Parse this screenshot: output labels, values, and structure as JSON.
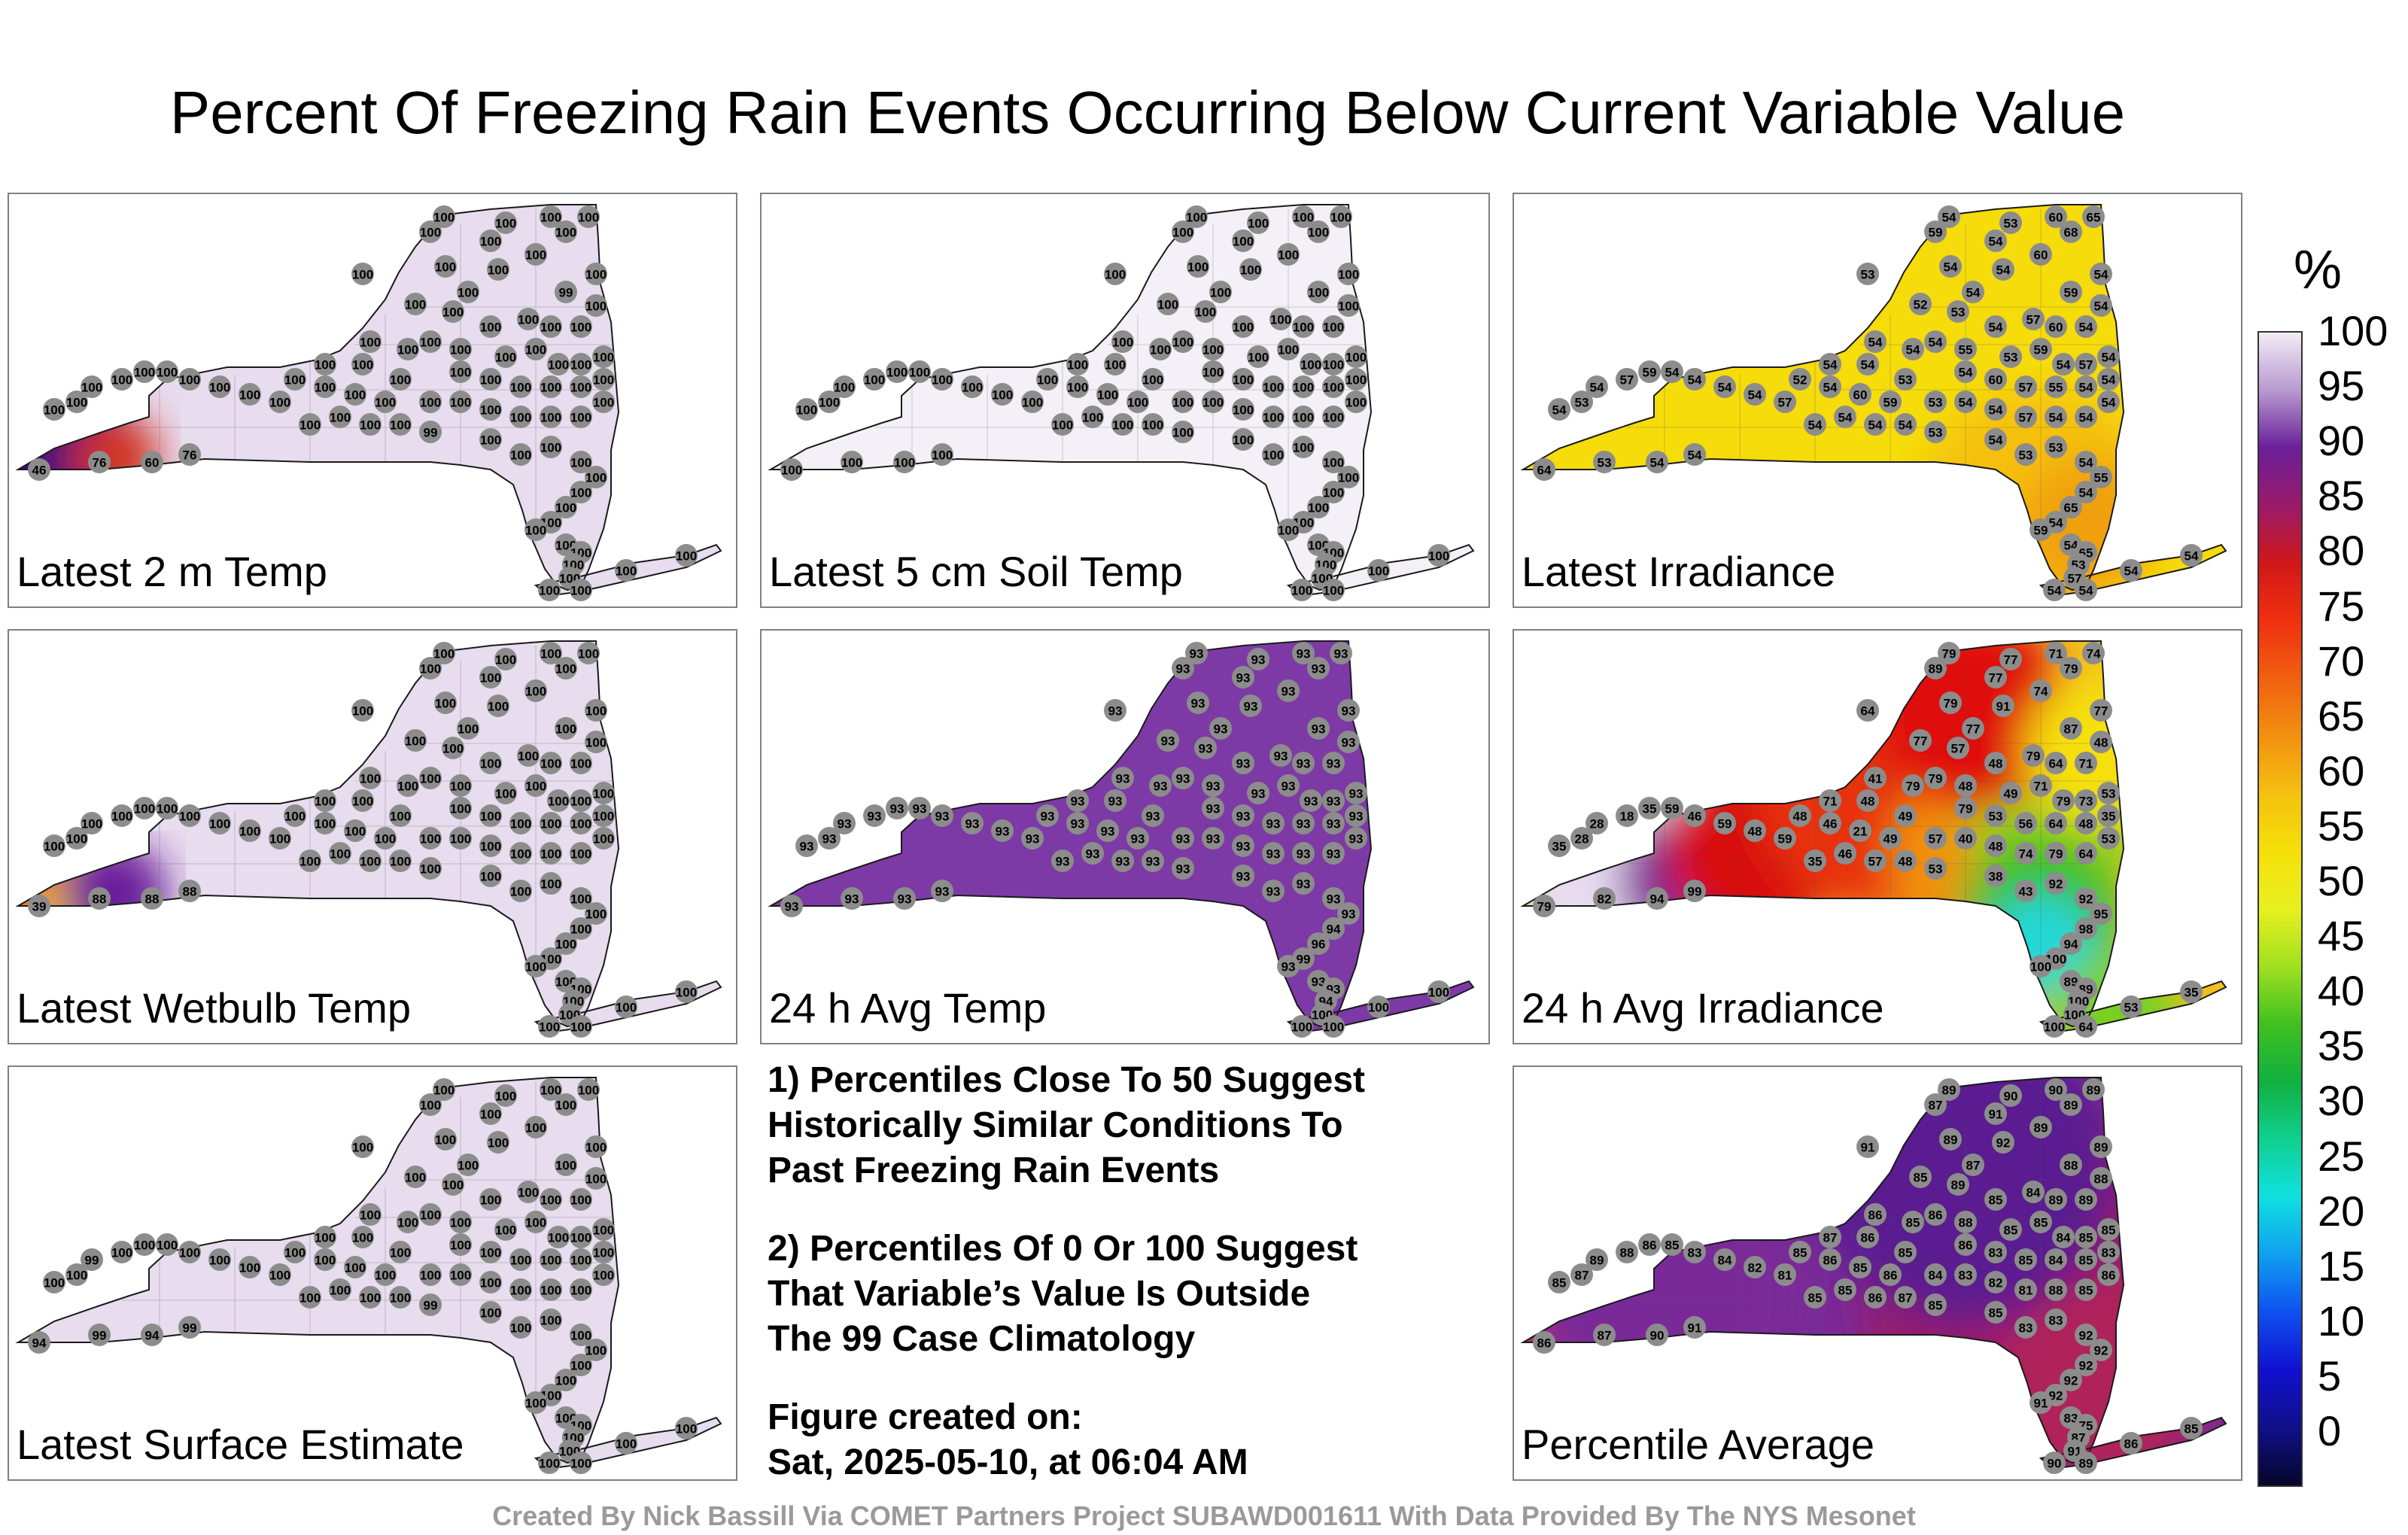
{
  "title": "Percent Of Freezing Rain Events Occurring Below Current Variable Value",
  "colors": {
    "p100": "#ece3f2",
    "p93": "#7d3aa6",
    "p89": "#6a1f9a",
    "p85": "#9a1a6a",
    "p76": "#d02010",
    "p54": "#f2d90a",
    "p40": "#2fc02f",
    "p20": "#20d8d8",
    "outline": "#1a1a1a",
    "station": "#8c8c8c"
  },
  "panels": [
    {
      "label": "Latest 2 m Temp",
      "fill": "#e8dcef",
      "values": [
        "100",
        "100",
        "100",
        "100",
        "100",
        "100",
        "100",
        "100",
        "100",
        "100",
        "100",
        "100",
        "99",
        "100",
        "100",
        "100",
        "100",
        "100",
        "100",
        "100",
        "100",
        "100",
        "100",
        "100",
        "100",
        "100",
        "100",
        "100",
        "100",
        "100",
        "100",
        "100",
        "100",
        "100",
        "100",
        "100",
        "100",
        "100",
        "100",
        "100",
        "100",
        "100",
        "100",
        "100",
        "100",
        "100",
        "100",
        "100",
        "100",
        "100",
        "100",
        "100",
        "100",
        "100",
        "100",
        "100",
        "100",
        "100",
        "100",
        "100",
        "100",
        "100",
        "100",
        "100",
        "99",
        "100",
        "100",
        "100",
        "100",
        "100",
        "100",
        "100",
        "100",
        "100",
        "76",
        "60",
        "76",
        "46",
        "100",
        "100",
        "100",
        "100",
        "100",
        "100",
        "100",
        "100"
      ]
    },
    {
      "label": "Latest 5 cm Soil Temp",
      "fill": "#f4f0f7",
      "values": [
        "100",
        "100",
        "100",
        "100",
        "100",
        "100",
        "100",
        "100",
        "100",
        "100",
        "100",
        "100",
        "100",
        "100",
        "100",
        "100",
        "100",
        "100",
        "100",
        "100",
        "100",
        "100",
        "100",
        "100",
        "100",
        "100",
        "100",
        "100",
        "100",
        "100",
        "100",
        "100",
        "100",
        "100",
        "100",
        "100",
        "100",
        "100",
        "100",
        "100",
        "100",
        "100",
        "100",
        "100",
        "100",
        "100",
        "100",
        "100",
        "100",
        "100",
        "100",
        "100",
        "100",
        "100",
        "100",
        "100",
        "100",
        "100",
        "100",
        "100",
        "100",
        "100",
        "100",
        "100",
        "100",
        "100",
        "100",
        "100",
        "100",
        "100",
        "100",
        "100",
        "100",
        "100",
        "100",
        "100",
        "100",
        "100",
        "100",
        "100",
        "100",
        "100",
        "100",
        "100",
        "100",
        "100"
      ]
    },
    {
      "label": "Latest Irradiance",
      "fill": "#f5dc0a",
      "values": [
        "54",
        "53",
        "60",
        "68",
        "65",
        "59",
        "54",
        "53",
        "54",
        "54",
        "60",
        "54",
        "59",
        "54",
        "52",
        "53",
        "54",
        "57",
        "60",
        "54",
        "54",
        "54",
        "54",
        "54",
        "55",
        "53",
        "59",
        "54",
        "57",
        "54",
        "54",
        "54",
        "53",
        "54",
        "60",
        "57",
        "55",
        "54",
        "54",
        "53",
        "54",
        "54",
        "57",
        "54",
        "54",
        "54",
        "59",
        "60",
        "54",
        "52",
        "57",
        "54",
        "54",
        "54",
        "54",
        "59",
        "57",
        "54",
        "53",
        "54",
        "54",
        "54",
        "54",
        "54",
        "53",
        "54",
        "53",
        "53",
        "54",
        "55",
        "54",
        "65",
        "54",
        "59",
        "54",
        "54",
        "53",
        "64",
        "54",
        "65",
        "53",
        "57",
        "54",
        "54",
        "54",
        "54"
      ]
    },
    {
      "label": "Latest Wetbulb Temp",
      "fill": "#e8dcef",
      "values": [
        "100",
        "100",
        "100",
        "100",
        "100",
        "100",
        "100",
        "100",
        "100",
        "100",
        "100",
        "100",
        "100",
        "100",
        "100",
        "100",
        "100",
        "100",
        "100",
        "100",
        "100",
        "100",
        "100",
        "100",
        "100",
        "100",
        "100",
        "100",
        "100",
        "100",
        "100",
        "100",
        "100",
        "100",
        "100",
        "100",
        "100",
        "100",
        "100",
        "100",
        "100",
        "100",
        "100",
        "100",
        "100",
        "100",
        "100",
        "100",
        "100",
        "100",
        "100",
        "100",
        "100",
        "100",
        "100",
        "100",
        "100",
        "100",
        "100",
        "100",
        "100",
        "100",
        "100",
        "100",
        "100",
        "100",
        "100",
        "100",
        "100",
        "100",
        "100",
        "100",
        "100",
        "100",
        "88",
        "88",
        "88",
        "39",
        "100",
        "100",
        "100",
        "100",
        "100",
        "100",
        "100",
        "100"
      ]
    },
    {
      "label": "24 h Avg Temp",
      "fill": "#7d3aa6",
      "values": [
        "93",
        "93",
        "93",
        "93",
        "93",
        "93",
        "93",
        "93",
        "93",
        "93",
        "93",
        "93",
        "93",
        "93",
        "93",
        "93",
        "93",
        "93",
        "93",
        "93",
        "93",
        "93",
        "93",
        "93",
        "93",
        "93",
        "93",
        "93",
        "93",
        "93",
        "93",
        "93",
        "93",
        "93",
        "93",
        "93",
        "93",
        "93",
        "93",
        "93",
        "93",
        "93",
        "93",
        "93",
        "93",
        "93",
        "93",
        "93",
        "93",
        "93",
        "93",
        "93",
        "93",
        "93",
        "93",
        "93",
        "93",
        "93",
        "93",
        "93",
        "93",
        "93",
        "93",
        "93",
        "93",
        "93",
        "93",
        "93",
        "93",
        "93",
        "94",
        "96",
        "99",
        "93",
        "93",
        "93",
        "93",
        "93",
        "93",
        "93",
        "94",
        "100",
        "100",
        "100",
        "100",
        "100"
      ]
    },
    {
      "label": "24 h Avg Irradiance",
      "fill": "#f2c020",
      "values": [
        "79",
        "77",
        "71",
        "79",
        "74",
        "89",
        "77",
        "64",
        "79",
        "91",
        "74",
        "77",
        "87",
        "77",
        "77",
        "57",
        "48",
        "79",
        "64",
        "71",
        "48",
        "41",
        "79",
        "79",
        "48",
        "49",
        "71",
        "79",
        "73",
        "53",
        "71",
        "48",
        "49",
        "79",
        "53",
        "56",
        "64",
        "48",
        "35",
        "57",
        "40",
        "48",
        "74",
        "79",
        "64",
        "53",
        "49",
        "21",
        "46",
        "48",
        "59",
        "48",
        "59",
        "46",
        "59",
        "35",
        "18",
        "28",
        "28",
        "35",
        "35",
        "46",
        "57",
        "48",
        "53",
        "38",
        "43",
        "92",
        "92",
        "95",
        "98",
        "94",
        "100",
        "100",
        "99",
        "94",
        "82",
        "79",
        "89",
        "89",
        "100",
        "100",
        "100",
        "64",
        "53",
        "35"
      ]
    },
    {
      "label": "Latest Surface Estimate",
      "fill": "#e8dcef",
      "values": [
        "100",
        "100",
        "100",
        "100",
        "100",
        "100",
        "100",
        "100",
        "100",
        "100",
        "100",
        "100",
        "100",
        "100",
        "100",
        "100",
        "100",
        "100",
        "100",
        "100",
        "100",
        "100",
        "100",
        "100",
        "100",
        "100",
        "100",
        "100",
        "100",
        "100",
        "100",
        "100",
        "100",
        "100",
        "100",
        "100",
        "100",
        "100",
        "100",
        "100",
        "100",
        "100",
        "100",
        "100",
        "100",
        "100",
        "100",
        "100",
        "100",
        "100",
        "100",
        "100",
        "100",
        "100",
        "100",
        "100",
        "100",
        "99",
        "100",
        "100",
        "100",
        "100",
        "100",
        "100",
        "99",
        "100",
        "100",
        "100",
        "100",
        "100",
        "100",
        "100",
        "100",
        "100",
        "99",
        "94",
        "99",
        "94",
        "100",
        "100",
        "100",
        "100",
        "100",
        "100",
        "100",
        "100"
      ]
    },
    {
      "label": "Percentile Average",
      "fill": "#7a2a98",
      "values": [
        "89",
        "90",
        "90",
        "89",
        "89",
        "87",
        "91",
        "91",
        "89",
        "92",
        "89",
        "87",
        "88",
        "89",
        "85",
        "89",
        "85",
        "84",
        "89",
        "89",
        "88",
        "86",
        "85",
        "86",
        "88",
        "85",
        "85",
        "84",
        "85",
        "85",
        "87",
        "86",
        "85",
        "86",
        "83",
        "85",
        "84",
        "85",
        "83",
        "84",
        "83",
        "82",
        "81",
        "88",
        "85",
        "86",
        "86",
        "85",
        "86",
        "85",
        "81",
        "82",
        "84",
        "83",
        "85",
        "86",
        "88",
        "89",
        "87",
        "85",
        "85",
        "85",
        "86",
        "87",
        "85",
        "85",
        "83",
        "83",
        "92",
        "92",
        "92",
        "92",
        "92",
        "91",
        "91",
        "90",
        "87",
        "86",
        "83",
        "75",
        "87",
        "91",
        "90",
        "89",
        "86",
        "85"
      ]
    }
  ],
  "notes": {
    "note1": "1) Percentiles Close To 50 Suggest\nHistorically Similar Conditions To\nPast Freezing Rain Events",
    "note2": "2) Percentiles Of 0 Or 100 Suggest\nThat Variable’s Value Is Outside\nThe 99 Case Climatology",
    "created_label": "Figure created on:",
    "created_date": "Sat, 2025-05-10, at 06:04 AM"
  },
  "colorbar": {
    "unit": "%",
    "ticks": [
      "100",
      "95",
      "90",
      "85",
      "80",
      "75",
      "70",
      "65",
      "60",
      "55",
      "50",
      "45",
      "40",
      "35",
      "30",
      "25",
      "20",
      "15",
      "10",
      "5",
      "0"
    ]
  },
  "credit": "Created By Nick Bassill Via COMET Partners Project SUBAWD001611 With Data Provided By The NYS Mesonet"
}
